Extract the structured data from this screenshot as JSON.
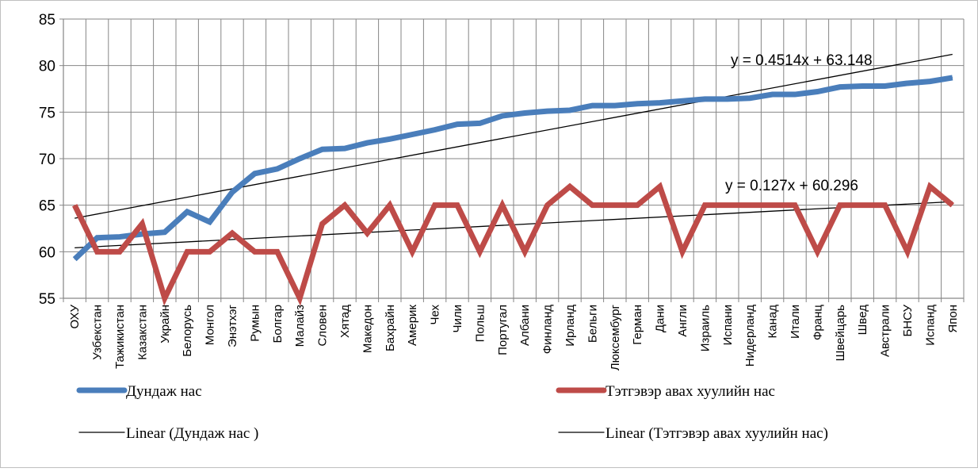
{
  "chart_data": {
    "type": "line",
    "title": "",
    "xlabel": "",
    "ylabel": "",
    "ylim": [
      55,
      85
    ],
    "yticks": [
      55,
      60,
      65,
      70,
      75,
      80,
      85
    ],
    "grid": true,
    "legend_position": "bottom",
    "categories": [
      "ОХУ",
      "Узбекстан",
      "Тажикистан",
      "Казакстан",
      "Украйн",
      "Белорусь",
      "Монгол",
      "Энэтхэг",
      "Румын",
      "Болгар",
      "Малайз",
      "Словен",
      "Хятад",
      "Македон",
      "Бахрайн",
      "Америк",
      "Чех",
      "Чили",
      "Польш",
      "Португал",
      "Албани",
      "Финланд",
      "Ирланд",
      "Бельги",
      "Люксембург",
      "Герман",
      "Дани",
      "Англи",
      "Израиль",
      "Испани",
      "Нидерланд",
      "Канад",
      "Итали",
      "Франц",
      "Швейцарь",
      "Швед",
      "Австрали",
      "БНСУ",
      "Испанд",
      "Япон"
    ],
    "series": [
      {
        "name": "Дундаж нас",
        "color": "#4a7ebb",
        "values": [
          59.2,
          61.5,
          61.6,
          61.9,
          62.1,
          64.3,
          63.2,
          66.4,
          68.4,
          68.9,
          70.0,
          71.0,
          71.1,
          71.7,
          72.1,
          72.6,
          73.1,
          73.7,
          73.8,
          74.6,
          74.9,
          75.1,
          75.2,
          75.7,
          75.7,
          75.9,
          76.0,
          76.2,
          76.4,
          76.4,
          76.5,
          76.9,
          76.9,
          77.2,
          77.7,
          77.8,
          77.8,
          78.1,
          78.3,
          78.7
        ]
      },
      {
        "name": "Тэтгэвэр авах хуулийн нас",
        "color": "#be4b48",
        "values": [
          65,
          60,
          60,
          63,
          55,
          60,
          60,
          62,
          60,
          60,
          55,
          63,
          65,
          62,
          65,
          60,
          65,
          65,
          60,
          65,
          60,
          65,
          67,
          65,
          65,
          65,
          67,
          60,
          65,
          65,
          65,
          65,
          65,
          60,
          65,
          65,
          65,
          60,
          67,
          65
        ]
      }
    ],
    "trendlines": [
      {
        "name": "Linear (Дундаж нас )",
        "slope": 0.4514,
        "intercept": 63.148,
        "equation": "y = 0.4514x + 63.148",
        "color": "#000000"
      },
      {
        "name": "Linear (Тэтгэвэр авах хуулийн нас)",
        "slope": 0.127,
        "intercept": 60.296,
        "equation": "y = 0.127x + 60.296",
        "color": "#000000"
      }
    ],
    "legend": [
      "Дундаж нас",
      "Тэтгэвэр авах хуулийн нас",
      "Linear (Дундаж нас )",
      "Linear (Тэтгэвэр авах хуулийн нас)"
    ]
  }
}
